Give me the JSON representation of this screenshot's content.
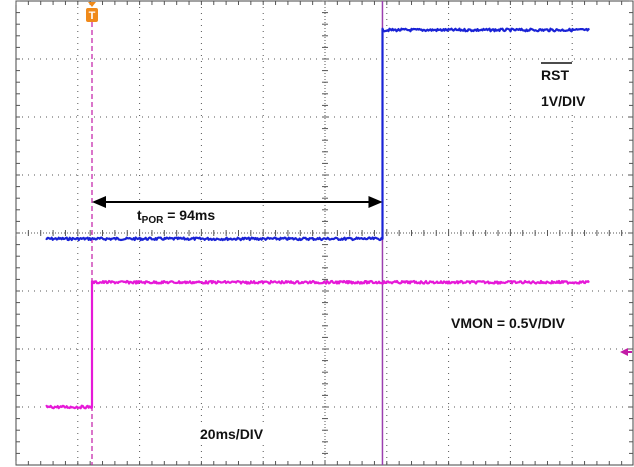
{
  "chart_data": {
    "type": "line",
    "time_unit": "ms",
    "time_per_div": 20,
    "divisions": {
      "x": 10,
      "y": 8
    },
    "grid": true,
    "trigger_marker": "T",
    "colors": {
      "rst": "#1a23d6",
      "vmon": "#e619d8",
      "trigger_line": "#c21aa6",
      "cursor_line": "#9b3fb0",
      "trigger_icon": "#f08a1a",
      "grid": "#555555",
      "frame": "#444444",
      "arrow": "#000000"
    },
    "series": [
      {
        "name": "RST",
        "scale": "1V/DIV",
        "points": [
          {
            "t_ms": -15,
            "div": -0.1
          },
          {
            "t_ms": 94,
            "div": -0.1
          },
          {
            "t_ms": 94,
            "div": 3.5
          },
          {
            "t_ms": 161,
            "div": 3.5
          }
        ]
      },
      {
        "name": "VMON",
        "scale": "0.5V/DIV",
        "points": [
          {
            "t_ms": -15,
            "div": -3.0
          },
          {
            "t_ms": 0,
            "div": -3.0
          },
          {
            "t_ms": 0,
            "div": -0.85
          },
          {
            "t_ms": 161,
            "div": -0.85
          }
        ]
      }
    ],
    "annotations": {
      "rst_title": "RST",
      "rst_scale": "1V/DIV",
      "tpor_main": "t",
      "tpor_sub": "POR",
      "tpor_value": " = 94ms",
      "vmon_label": "VMON = 0.5V/DIV",
      "timebase": "20ms/DIV",
      "tpor_start_ms": 0,
      "tpor_end_ms": 94
    }
  }
}
